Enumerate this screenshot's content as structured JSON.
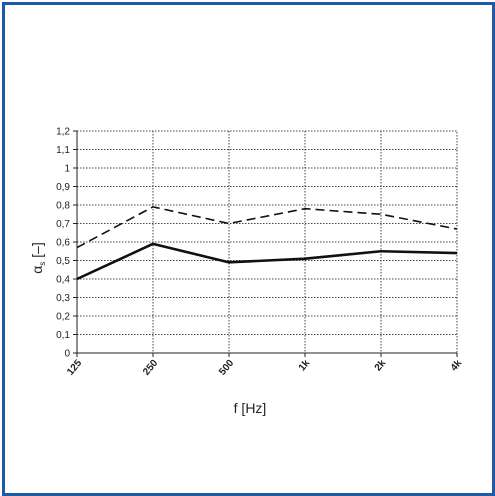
{
  "chart_data": {
    "type": "line",
    "categories": [
      "125",
      "250",
      "500",
      "1k",
      "2k",
      "4k"
    ],
    "series": [
      {
        "style": "solid",
        "values": [
          0.4,
          0.59,
          0.49,
          0.51,
          0.55,
          0.54
        ]
      },
      {
        "style": "dashed",
        "values": [
          0.57,
          0.79,
          0.7,
          0.78,
          0.75,
          0.67
        ]
      }
    ],
    "xlabel": "f [Hz]",
    "ylabel_symbol": "α",
    "ylabel_subscript": "s",
    "ylabel_unit": " [–]",
    "ylim": [
      0,
      1.2
    ],
    "yticks": [
      "0",
      "0,1",
      "0,2",
      "0,3",
      "0,4",
      "0,5",
      "0,6",
      "0,7",
      "0,8",
      "0,9",
      "1",
      "1,1",
      "1,2"
    ],
    "grid": true,
    "colors": {
      "frame": "#1f5aa6",
      "line": "#111111",
      "grid": "#444444"
    }
  }
}
